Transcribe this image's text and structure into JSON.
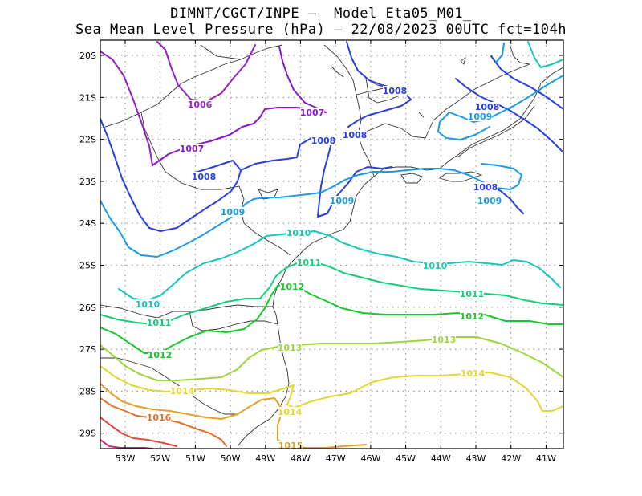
{
  "title_line1": "DIMNT/CGCT/INPE –  Model Eta05_M01_",
  "title_line2": "Sea Mean Level Pressure (hPa) – 22/08/2023 00UTC fct=104h",
  "axes": {
    "lat_labels": [
      "20S",
      "21S",
      "22S",
      "23S",
      "24S",
      "25S",
      "26S",
      "27S",
      "28S",
      "29S"
    ],
    "lon_labels": [
      "53W",
      "52W",
      "51W",
      "50W",
      "49W",
      "48W",
      "47W",
      "46W",
      "45W",
      "44W",
      "43W",
      "42W",
      "41W"
    ],
    "grid": "dotted"
  },
  "isobars": [
    {
      "value": "1006",
      "color": "#9b1fc6"
    },
    {
      "value": "1007",
      "color": "#8a18c9"
    },
    {
      "value": "1008",
      "color": "#2a3fe0"
    },
    {
      "value": "1009",
      "color": "#1a9be8"
    },
    {
      "value": "1010",
      "color": "#17c6b7"
    },
    {
      "value": "1011",
      "color": "#11cf79"
    },
    {
      "value": "1012",
      "color": "#17c92b"
    },
    {
      "value": "1013",
      "color": "#9ed63a"
    },
    {
      "value": "1014",
      "color": "#e4d531"
    },
    {
      "value": "1015",
      "color": "#e4a12a"
    },
    {
      "value": "1016",
      "color": "#e4702a"
    }
  ]
}
